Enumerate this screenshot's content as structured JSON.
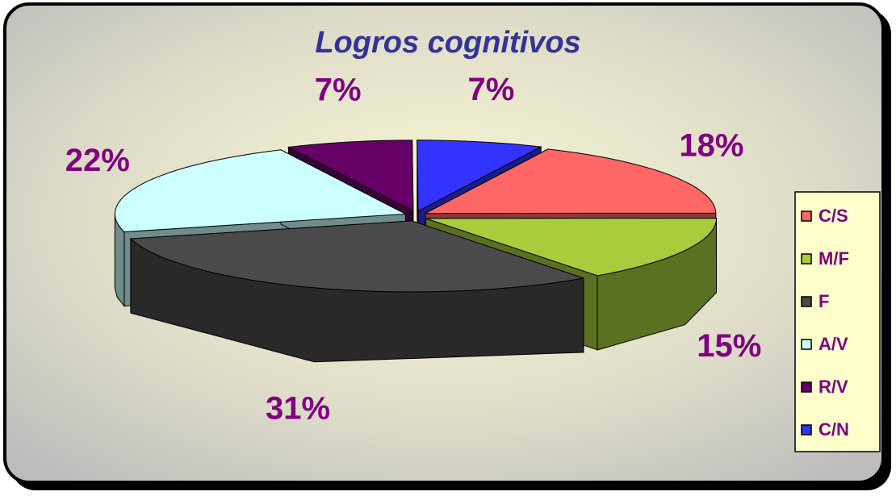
{
  "chart_data": {
    "type": "pie",
    "title": "Logros cognitivos",
    "categories": [
      "C/S",
      "M/F",
      "F",
      "A/V",
      "R/V",
      "C/N"
    ],
    "values": [
      18,
      15,
      31,
      22,
      7,
      7
    ],
    "value_labels": [
      "18%",
      "15%",
      "31%",
      "22%",
      "7%",
      "7%"
    ],
    "colors": [
      "#ff6666",
      "#a8cc3c",
      "#4a4a4a",
      "#ccffff",
      "#660066",
      "#3333ff"
    ],
    "legend": "right"
  }
}
